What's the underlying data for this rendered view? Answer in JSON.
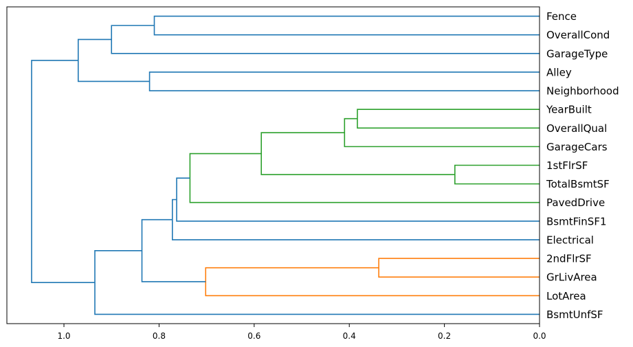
{
  "chart_data": {
    "type": "dendrogram",
    "orientation": "left",
    "xlim": [
      1.12,
      0.0
    ],
    "xticks": [
      1.0,
      0.8,
      0.6,
      0.4,
      0.2,
      0.0
    ],
    "xtick_labels": [
      "1.0",
      "0.8",
      "0.6",
      "0.4",
      "0.2",
      "0.0"
    ],
    "leaves": [
      "Fence",
      "OverallCond",
      "GarageType",
      "Alley",
      "Neighborhood",
      "YearBuilt",
      "OverallQual",
      "GarageCars",
      "1stFlrSF",
      "TotalBsmtSF",
      "PavedDrive",
      "BsmtFinSF1",
      "Electrical",
      "2ndFlrSF",
      "GrLivArea",
      "LotArea",
      "BsmtUnfSF"
    ],
    "colors": {
      "c0": "#1f77b4",
      "c1": "#ff7f0e",
      "c2": "#2ca02c"
    },
    "merges": [
      {
        "id": "n1",
        "left": "YearBuilt",
        "right": "OverallQual",
        "height": 0.383,
        "color": "c2"
      },
      {
        "id": "n2",
        "left": "n1",
        "right": "GarageCars",
        "height": 0.41,
        "color": "c2"
      },
      {
        "id": "n3",
        "left": "1stFlrSF",
        "right": "TotalBsmtSF",
        "height": 0.178,
        "color": "c2"
      },
      {
        "id": "n4",
        "left": "n2",
        "right": "n3",
        "height": 0.585,
        "color": "c2"
      },
      {
        "id": "n5",
        "left": "n4",
        "right": "PavedDrive",
        "height": 0.735,
        "color": "c2"
      },
      {
        "id": "n6",
        "left": "n5",
        "right": "BsmtFinSF1",
        "height": 0.763,
        "color": "c0"
      },
      {
        "id": "n7",
        "left": "n6",
        "right": "Electrical",
        "height": 0.772,
        "color": "c0"
      },
      {
        "id": "n8",
        "left": "2ndFlrSF",
        "right": "GrLivArea",
        "height": 0.338,
        "color": "c1"
      },
      {
        "id": "n9",
        "left": "n8",
        "right": "LotArea",
        "height": 0.702,
        "color": "c1"
      },
      {
        "id": "n10",
        "left": "n7",
        "right": "n9",
        "height": 0.836,
        "color": "c0"
      },
      {
        "id": "n11",
        "left": "n10",
        "right": "BsmtUnfSF",
        "height": 0.935,
        "color": "c0"
      },
      {
        "id": "n12",
        "left": "Fence",
        "right": "OverallCond",
        "height": 0.81,
        "color": "c0"
      },
      {
        "id": "n13",
        "left": "n12",
        "right": "GarageType",
        "height": 0.9,
        "color": "c0"
      },
      {
        "id": "n14",
        "left": "Alley",
        "right": "Neighborhood",
        "height": 0.82,
        "color": "c0"
      },
      {
        "id": "n15",
        "left": "n13",
        "right": "n14",
        "height": 0.97,
        "color": "c0"
      },
      {
        "id": "n16",
        "left": "n15",
        "right": "n11",
        "height": 1.068,
        "color": "c0"
      }
    ]
  }
}
